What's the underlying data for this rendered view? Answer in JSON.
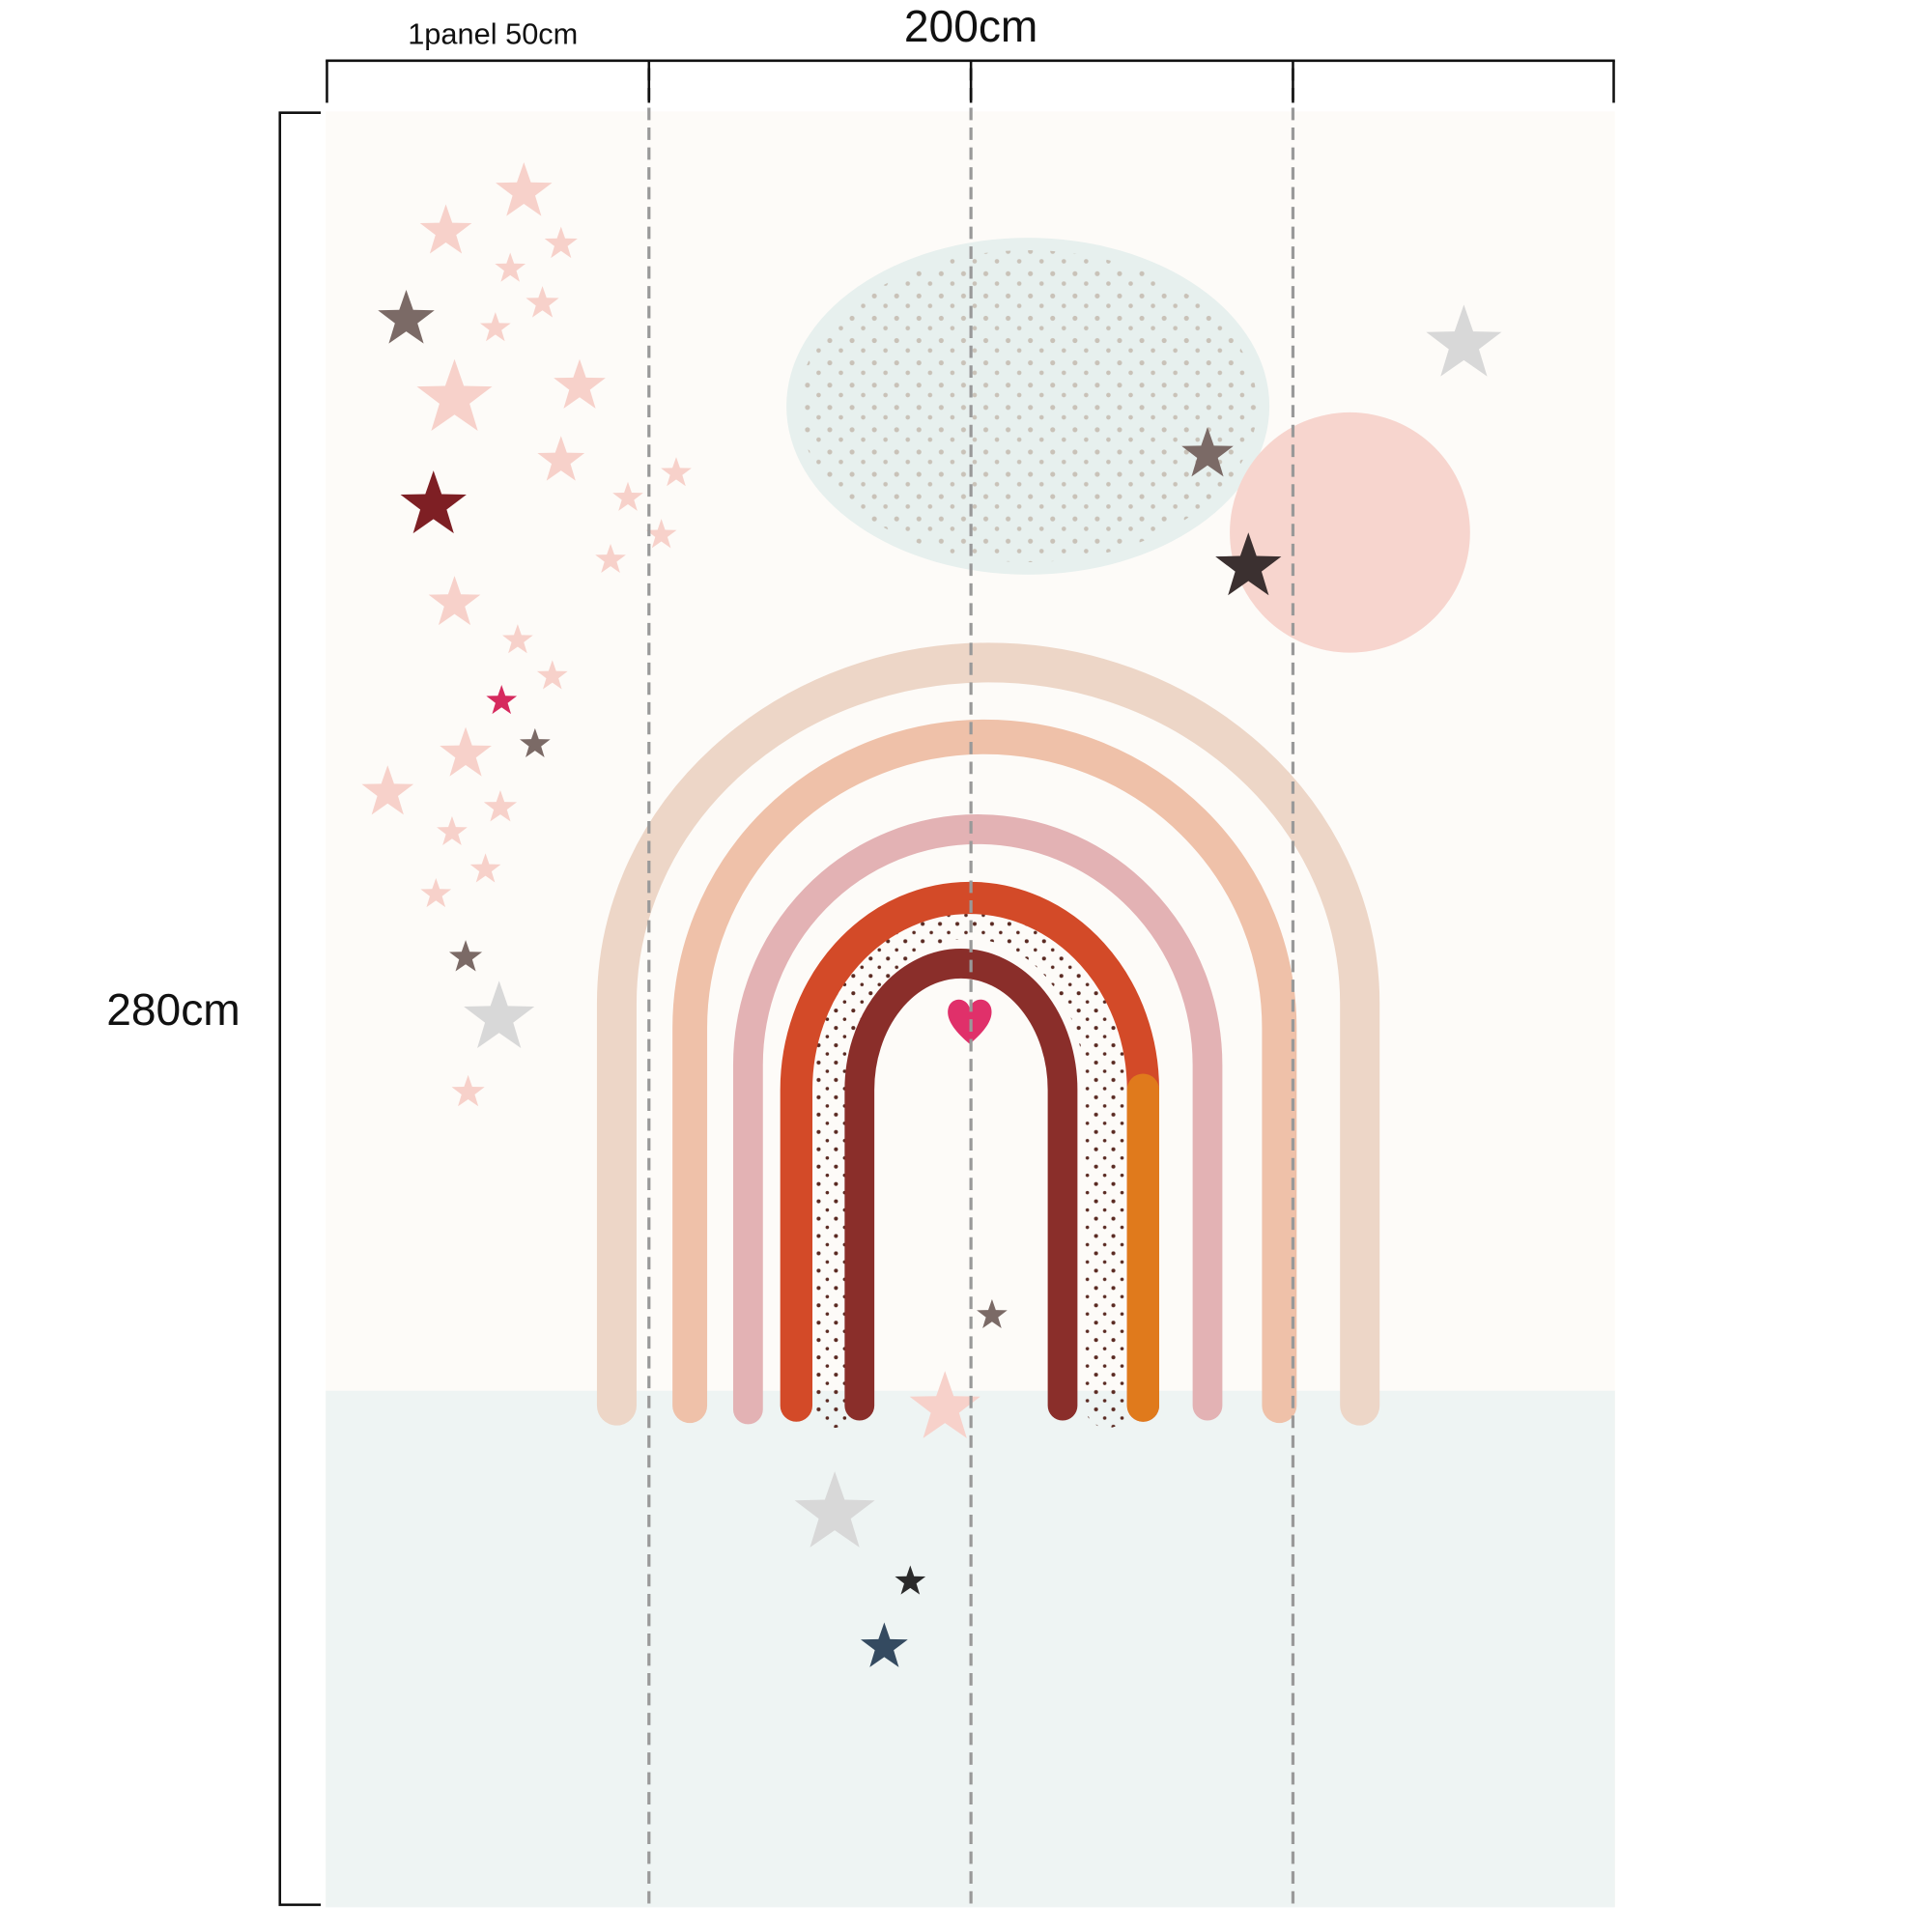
{
  "dimensions": {
    "panel_width": "1panel 50cm",
    "total_width": "200cm",
    "height": "280cm"
  }
}
